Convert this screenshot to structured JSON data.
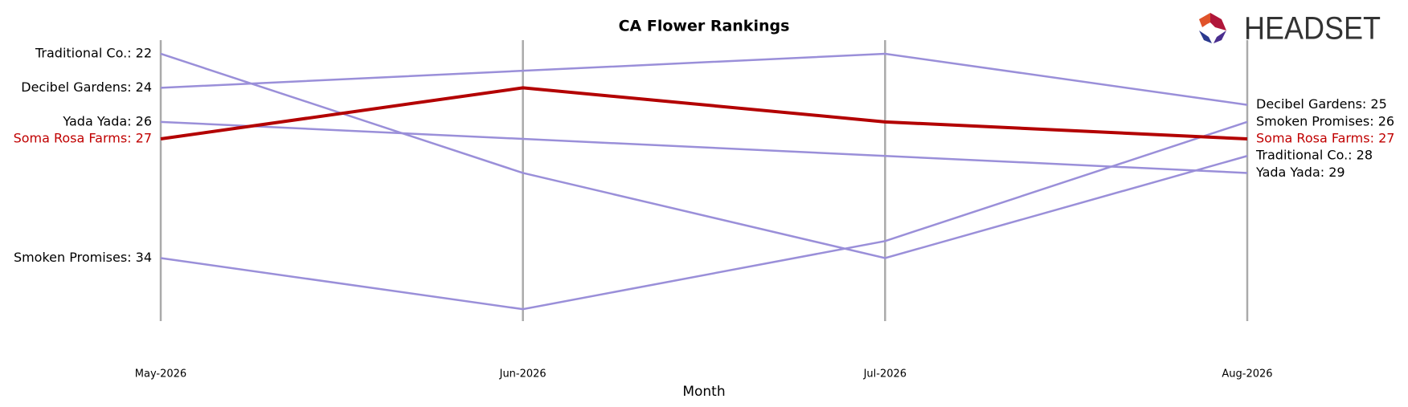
{
  "chart_data": {
    "type": "bump",
    "title": "CA Flower Rankings",
    "x_label": "Month",
    "logo": "HEADSET",
    "categories": [
      "May-2026",
      "Jun-2026",
      "Jul-2026",
      "Aug-2026"
    ],
    "ylim": [
      21.2,
      37.7
    ],
    "inverted": true,
    "series": [
      {
        "color": "#9a8fd9",
        "label_color": "#000000",
        "values": [
          22,
          29,
          34,
          28
        ],
        "value_labels": [
          "Traditional Co.: 22",
          null,
          null,
          "Traditional Co.: 28"
        ]
      },
      {
        "color": "#9a8fd9",
        "label_color": "#000000",
        "values": [
          24,
          23,
          22,
          25
        ],
        "value_labels": [
          "Decibel Gardens: 24",
          null,
          null,
          "Decibel Gardens: 25"
        ]
      },
      {
        "color": "#9a8fd9",
        "label_color": "#000000",
        "values": [
          26,
          27,
          28,
          29
        ],
        "value_labels": [
          "Yada Yada: 26",
          null,
          null,
          "Yada Yada: 29"
        ]
      },
      {
        "color": "#9a8fd9",
        "label_color": "#000000",
        "values": [
          34,
          37,
          33,
          26
        ],
        "value_labels": [
          "Smoken Promises: 34",
          null,
          null,
          "Smoken Promises: 26"
        ]
      },
      {
        "color": "#b30000",
        "label_color": "#c00000",
        "values": [
          27,
          24,
          26,
          27
        ],
        "value_labels": [
          "Soma Rosa Farms: 27",
          null,
          null,
          "Soma Rosa Farms: 27"
        ],
        "highlight": true
      }
    ]
  }
}
